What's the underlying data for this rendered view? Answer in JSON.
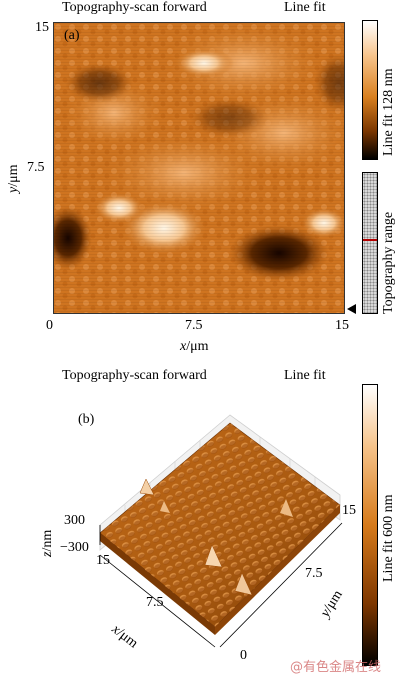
{
  "panel_a": {
    "label": "(a)",
    "header_left": "Topography-scan forward",
    "header_right": "Line fit",
    "colorbar_label": "Line fit 128 nm",
    "range_label": "Topography range",
    "x_axis": {
      "label_var": "x",
      "label_unit": "/μm",
      "ticks": [
        "0",
        "7.5",
        "15"
      ]
    },
    "y_axis": {
      "label_var": "y",
      "label_unit": "/μm",
      "ticks": [
        "15",
        "7.5"
      ]
    }
  },
  "panel_b": {
    "label": "(b)",
    "header_left": "Topography-scan forward",
    "header_right": "Line fit",
    "colorbar_label": "Line fit 600 nm",
    "z_axis": {
      "label_var": "z",
      "label_unit": "/nm",
      "ticks": [
        "300",
        "−300"
      ]
    },
    "x_axis": {
      "label_var": "x",
      "label_unit": "/μm",
      "ticks": [
        "15",
        "7.5",
        "0"
      ]
    },
    "y_axis": {
      "label_var": "y",
      "label_unit": "/μm",
      "ticks": [
        "15",
        "7.5"
      ]
    }
  },
  "watermark": "@有色金属在线"
}
